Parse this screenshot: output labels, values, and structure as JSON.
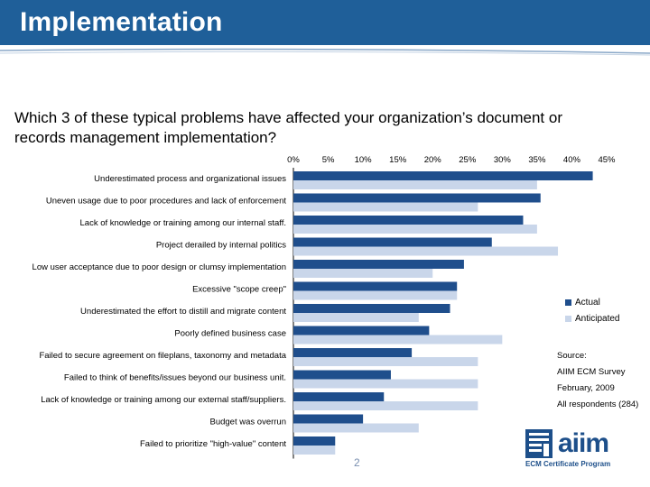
{
  "header": {
    "title": "Implementation"
  },
  "question": "Which 3 of these typical problems have affected your organization’s document or records management implementation?",
  "colors": {
    "actual": "#1f4e8c",
    "anticipated": "#c9d6ea",
    "header": "#1f5f99"
  },
  "legend": {
    "actual": "Actual",
    "anticipated": "Anticipated"
  },
  "source": {
    "label": "Source:",
    "line1": "AIIM ECM Survey",
    "line2": "February, 2009",
    "line3": "All respondents (284)"
  },
  "logo": {
    "word": "aiim",
    "tagline": "ECM Certificate Program",
    "icon": "aiim-logo-icon"
  },
  "page_number": "2",
  "chart_data": {
    "type": "bar",
    "orientation": "horizontal",
    "xlim": [
      0,
      45
    ],
    "ticks": [
      "0%",
      "5%",
      "10%",
      "15%",
      "20%",
      "25%",
      "30%",
      "35%",
      "40%",
      "45%"
    ],
    "tick_values": [
      0,
      5,
      10,
      15,
      20,
      25,
      30,
      35,
      40,
      45
    ],
    "categories": [
      "Underestimated process and organizational issues",
      "Uneven usage due to poor procedures and lack of enforcement",
      "Lack of knowledge or training among our internal staff.",
      "Project derailed by internal politics",
      "Low user acceptance due to poor design or clumsy implementation",
      "Excessive \"scope creep\"",
      "Underestimated the effort to distill and migrate content",
      "Poorly defined business case",
      "Failed to secure agreement on fileplans, taxonomy and metadata",
      "Failed to think of benefits/issues beyond our business unit.",
      "Lack of knowledge or training among our external staff/suppliers.",
      "Budget was overrun",
      "Failed to prioritize \"high-value\" content"
    ],
    "series": [
      {
        "name": "Actual",
        "values": [
          43,
          35.5,
          33,
          28.5,
          24.5,
          23.5,
          22.5,
          19.5,
          17,
          14,
          13,
          10,
          6
        ]
      },
      {
        "name": "Anticipated",
        "values": [
          35,
          26.5,
          35,
          38,
          20,
          23.5,
          18,
          30,
          26.5,
          26.5,
          26.5,
          18,
          6
        ]
      }
    ],
    "legend_position": "right",
    "grid": false
  }
}
